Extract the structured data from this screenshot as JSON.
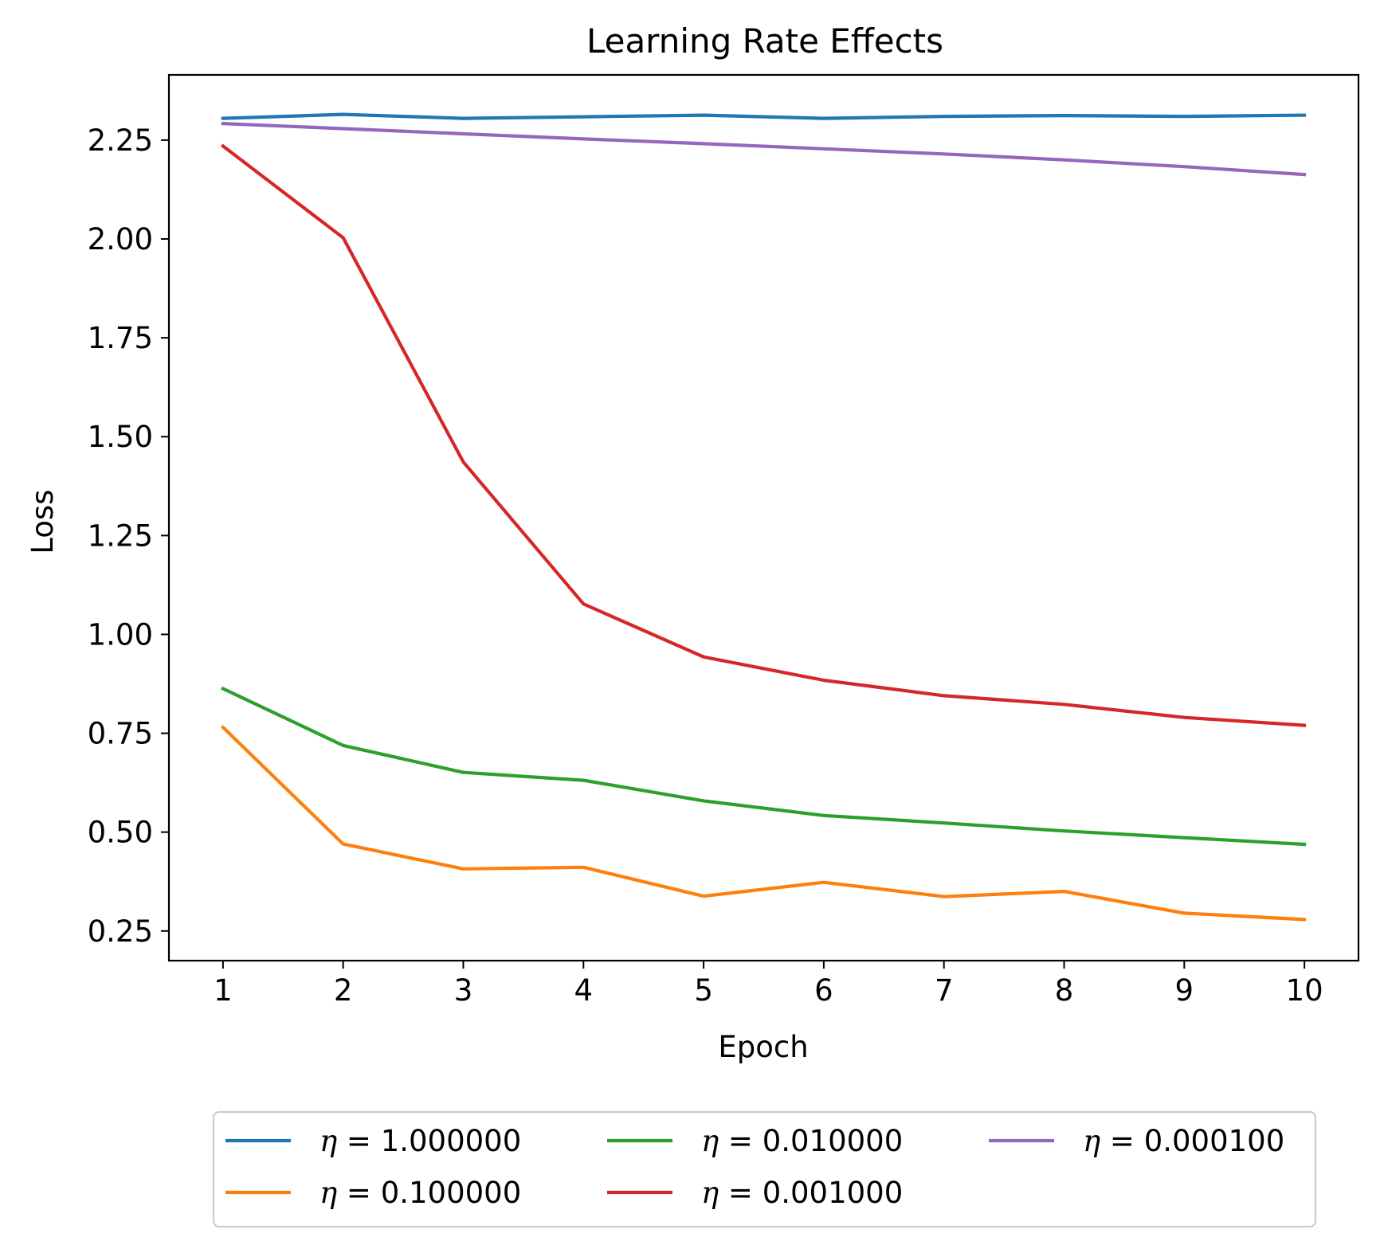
{
  "chart_data": {
    "type": "line",
    "title": "Learning Rate Effects",
    "xlabel": "Epoch",
    "ylabel": "Loss",
    "x": [
      1,
      2,
      3,
      4,
      5,
      6,
      7,
      8,
      9,
      10
    ],
    "xlim": [
      0.55,
      10.45
    ],
    "ylim": [
      0.175,
      2.415
    ],
    "xticks": [
      "1",
      "2",
      "3",
      "4",
      "5",
      "6",
      "7",
      "8",
      "9",
      "10"
    ],
    "yticks": [
      "0.25",
      "0.50",
      "0.75",
      "1.00",
      "1.25",
      "1.50",
      "1.75",
      "2.00",
      "2.25"
    ],
    "grid": false,
    "legend_position": "bottom-center",
    "legend_columns": 3,
    "series": [
      {
        "name": "η = 1.000000",
        "eta_symbol": "η",
        "eta_value": "= 1.000000",
        "color": "#1f77b4",
        "values": [
          2.305,
          2.315,
          2.305,
          2.309,
          2.313,
          2.305,
          2.31,
          2.312,
          2.31,
          2.313
        ]
      },
      {
        "name": "η = 0.100000",
        "eta_symbol": "η",
        "eta_value": "= 0.100000",
        "color": "#ff7f0e",
        "values": [
          0.765,
          0.47,
          0.407,
          0.411,
          0.338,
          0.373,
          0.337,
          0.35,
          0.295,
          0.279
        ]
      },
      {
        "name": "η = 0.010000",
        "eta_symbol": "η",
        "eta_value": "= 0.010000",
        "color": "#2ca02c",
        "values": [
          0.863,
          0.719,
          0.651,
          0.631,
          0.579,
          0.542,
          0.523,
          0.503,
          0.486,
          0.469
        ]
      },
      {
        "name": "η = 0.001000",
        "eta_symbol": "η",
        "eta_value": "= 0.001000",
        "color": "#d62728",
        "values": [
          2.235,
          2.003,
          1.436,
          1.077,
          0.943,
          0.884,
          0.845,
          0.823,
          0.79,
          0.77
        ]
      },
      {
        "name": "η = 0.000100",
        "eta_symbol": "η",
        "eta_value": "= 0.000100",
        "color": "#9467bd",
        "values": [
          2.292,
          2.279,
          2.266,
          2.253,
          2.241,
          2.228,
          2.215,
          2.2,
          2.183,
          2.163
        ]
      }
    ]
  }
}
